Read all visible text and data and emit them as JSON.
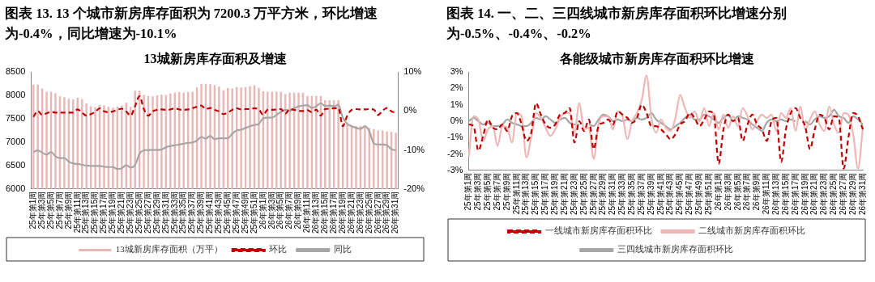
{
  "chart_data": [
    {
      "type": "bar",
      "title": "图表 13. 13 个城市新房库存面积为 7200.3 万平方米，环比增速为-0.4%，同比增速为-10.1%",
      "subtitle": "13城新房库存面积及增速",
      "categories": [
        "25年第1周",
        null,
        "25年第3周",
        null,
        "25年第5周",
        null,
        "25年第7周",
        null,
        "25年第9周",
        null,
        "25年第11周",
        null,
        "25年第13周",
        null,
        "25年第15周",
        null,
        "25年第17周",
        null,
        "25年第19周",
        null,
        "25年第21周",
        null,
        "25年第23周",
        null,
        "25年第25周",
        null,
        "25年第27周",
        null,
        "25年第29周",
        null,
        "25年第31周",
        null,
        "25年第33周",
        null,
        "25年第35周",
        null,
        "25年第37周",
        null,
        "25年第39周",
        null,
        "25年第41周",
        null,
        "25年第43周",
        null,
        "25年第45周",
        null,
        "25年第47周",
        null,
        "25年第49周",
        null,
        "25年第51周",
        null,
        "26年第1周",
        null,
        "26年第3周",
        null,
        "26年第5周",
        null,
        "26年第7周",
        null,
        "26年第9周",
        null,
        "26年第11周",
        null,
        "26年第13周",
        null,
        "26年第15周",
        null,
        "26年第17周",
        null,
        "26年第19周",
        null,
        "26年第21周",
        null,
        "26年第23周",
        null,
        "26年第25周",
        null,
        "26年第27周",
        null,
        "26年第29周",
        null,
        "26年第31周"
      ],
      "series": [
        {
          "name": "13城新房库存面积（万平）",
          "type": "bar",
          "axis": "y",
          "color": "#e8b7b7",
          "values": [
            8230,
            8230,
            8150,
            8080,
            8080,
            8050,
            7980,
            7960,
            7930,
            7920,
            7950,
            7920,
            7830,
            7770,
            7750,
            7800,
            7790,
            7760,
            7740,
            7760,
            7780,
            7840,
            7760,
            8100,
            8100,
            8010,
            7990,
            7980,
            8000,
            8020,
            8010,
            8040,
            8060,
            8070,
            8060,
            8070,
            8080,
            8170,
            8250,
            8250,
            8240,
            8220,
            8190,
            8110,
            8160,
            8150,
            8180,
            8170,
            8180,
            8200,
            8220,
            8160,
            8090,
            8080,
            8080,
            8080,
            8080,
            8030,
            8060,
            8060,
            8060,
            8060,
            7990,
            7990,
            7990,
            7990,
            7900,
            7900,
            7900,
            7900,
            7400,
            7380,
            7350,
            7350,
            7350,
            7350,
            7300,
            7280,
            7250,
            7250,
            7230,
            7220,
            7200
          ]
        },
        {
          "name": "环比",
          "type": "line",
          "axis": "y2",
          "color": "#c00000",
          "line_style": "dashed",
          "values": [
            -1.5,
            0,
            -1.0,
            -0.6,
            -0.2,
            -0.4,
            -0.4,
            -0.4,
            -0.4,
            -0.4,
            0.4,
            -0.4,
            -1.2,
            -0.8,
            -0.2,
            0.7,
            -0.1,
            -0.3,
            -0.1,
            0.3,
            0.6,
            -0.1,
            -1.2,
            1.2,
            3.8,
            0.5,
            -1.2,
            -0.1,
            0.3,
            0.4,
            0.3,
            0.4,
            0.7,
            0.4,
            0.3,
            0.4,
            0.7,
            1.1,
            1.4,
            0.5,
            0.8,
            0.3,
            -0.1,
            -0.8,
            -0.4,
            0.3,
            0.7,
            0.4,
            0.5,
            0.5,
            0.7,
            0.4,
            -1.0,
            0.3,
            0.3,
            0.4,
            0.5,
            -0.7,
            0.5,
            0.3,
            0.0,
            0.0,
            0.2,
            -0.3,
            0.3,
            -1.2,
            0.5,
            0.6,
            0.7,
            0.8,
            -3.9,
            -1.2,
            0.3,
            0.5,
            0.4,
            0.4,
            0.5,
            0.4,
            -1.0,
            0.1,
            0.8,
            -0.1,
            -0.4
          ]
        },
        {
          "name": "同比",
          "type": "line",
          "axis": "y2",
          "color": "#a6a6a6",
          "line_style": "solid",
          "values": [
            -10.5,
            -10.1,
            -10.7,
            -11.2,
            -10.5,
            -11.6,
            -12.1,
            -12.1,
            -13.0,
            -13.5,
            -13.6,
            -13.8,
            -14.0,
            -14.1,
            -14.1,
            -14.1,
            -14.3,
            -14.4,
            -14.4,
            -14.9,
            -14.7,
            -13.9,
            -14.5,
            -13.9,
            -11.0,
            -10.1,
            -10.0,
            -10.0,
            -10.0,
            -9.9,
            -9.3,
            -9.0,
            -8.8,
            -8.6,
            -8.4,
            -8.2,
            -8.1,
            -7.6,
            -6.7,
            -7.1,
            -6.4,
            -7.2,
            -7.0,
            -7.0,
            -7.0,
            -5.8,
            -5.0,
            -4.8,
            -4.3,
            -3.9,
            -3.6,
            -3.3,
            -1.9,
            -1.7,
            -1.7,
            -1.0,
            -0.2,
            0.3,
            0.1,
            0.7,
            1.2,
            1.4,
            1.5,
            0.8,
            1.2,
            2.0,
            1.3,
            1.4,
            1.2,
            1.6,
            -1.7,
            -3.3,
            -3.9,
            -4.3,
            -4.6,
            -3.9,
            -5.2,
            -8.3,
            -8.6,
            -8.6,
            -8.8,
            -9.8,
            -10.1
          ]
        }
      ],
      "ylim": [
        6000,
        8500
      ],
      "yticks": [
        6000,
        6500,
        7000,
        7500,
        8000,
        8500
      ],
      "y2lim": [
        -20,
        10
      ],
      "y2ticks": [
        {
          "value": -20,
          "label": "-20%"
        },
        {
          "value": -10,
          "label": "-10%"
        },
        {
          "value": 0,
          "label": "0%"
        },
        {
          "value": 10,
          "label": "10%"
        }
      ],
      "grid": false,
      "legend": "bottom",
      "marker": "none"
    },
    {
      "type": "line",
      "title": "图表 14. 一、二、三四线城市新房库存面积环比增速分别为-0.5%、-0.4%、-0.2%",
      "subtitle": "各能级城市新房库存面积环比增速",
      "categories": [
        "25年第1周",
        null,
        "25年第3周",
        null,
        "25年第5周",
        null,
        "25年第7周",
        null,
        "25年第9周",
        null,
        "25年第11周",
        null,
        "25年第13周",
        null,
        "25年第15周",
        null,
        "25年第17周",
        null,
        "25年第19周",
        null,
        "25年第21周",
        null,
        "25年第23周",
        null,
        "25年第25周",
        null,
        "25年第27周",
        null,
        "25年第29周",
        null,
        "25年第31周",
        null,
        "25年第33周",
        null,
        "25年第35周",
        null,
        "25年第37周",
        null,
        "25年第39周",
        null,
        "25年第41周",
        null,
        "25年第43周",
        null,
        "25年第45周",
        null,
        "25年第47周",
        null,
        "25年第49周",
        null,
        "25年第51周",
        null,
        "26年第1周",
        null,
        "26年第3周",
        null,
        "26年第5周",
        null,
        "26年第7周",
        null,
        "26年第9周",
        null,
        "26年第11周",
        null,
        "26年第13周",
        null,
        "26年第15周",
        null,
        "26年第17周",
        null,
        "26年第19周",
        null,
        "26年第21周",
        null,
        "26年第23周",
        null,
        "26年第25周",
        null,
        "26年第27周",
        null,
        "26年第29周",
        null,
        "26年第31周"
      ],
      "series": [
        {
          "name": "一线城市新房库存面积环比",
          "type": "line",
          "axis": "y",
          "color": "#c00000",
          "line_style": "dashed",
          "values": [
            -0.2,
            -0.3,
            -1.8,
            -0.9,
            0.1,
            -0.4,
            -0.5,
            -0.2,
            -0.6,
            0.3,
            0.5,
            -0.2,
            -1.2,
            -0.7,
            1.1,
            0.4,
            -0.2,
            -0.4,
            -0.2,
            0.4,
            0.5,
            0.8,
            -1.3,
            0.0,
            -0.6,
            0.1,
            -1.7,
            -0.3,
            -0.1,
            0.1,
            -0.2,
            0.6,
            0.4,
            0.2,
            -0.1,
            0.2,
            1.0,
            0.5,
            -0.3,
            -0.3,
            -0.5,
            -0.8,
            -1.1,
            -0.8,
            -0.2,
            0.0,
            0.5,
            0.2,
            -0.3,
            0.1,
            0.6,
            0.4,
            -2.6,
            -0.5,
            0.4,
            0.0,
            0.2,
            -1.2,
            -0.2,
            0.4,
            -0.2,
            -0.5,
            -1.2,
            0.0,
            0.2,
            -2.5,
            -0.5,
            0.5,
            0.8,
            0.2,
            -0.3,
            -1.7,
            -0.5,
            0.4,
            0.2,
            -0.5,
            0.3,
            0.2,
            -2.9,
            -1.0,
            0.5,
            0.3,
            -0.5
          ]
        },
        {
          "name": "二线城市新房库存面积环比",
          "type": "line",
          "axis": "y",
          "color": "#efb6b6",
          "line_style": "solid",
          "values": [
            -2.2,
            0.3,
            0.1,
            -1.2,
            -0.5,
            -0.3,
            -1.5,
            -0.3,
            -0.4,
            -1.3,
            0.5,
            0.3,
            -2.2,
            -1.0,
            0.5,
            0.2,
            -0.4,
            -0.9,
            -0.5,
            0.2,
            0.5,
            0.5,
            -0.7,
            1.1,
            -0.5,
            -0.4,
            -2.3,
            -0.2,
            0.3,
            0.3,
            -0.5,
            0.6,
            0.3,
            -1.1,
            0.0,
            0.5,
            1.3,
            2.8,
            0.2,
            -0.7,
            0.1,
            -0.4,
            -0.6,
            0.2,
            1.6,
            0.8,
            0.2,
            0.6,
            0.0,
            0.8,
            -0.3,
            0.5,
            -0.5,
            0.4,
            -0.4,
            0.3,
            -0.3,
            0.8,
            0.3,
            -0.5,
            0.0,
            0.4,
            0.2,
            0.4,
            -0.6,
            0.5,
            0.2,
            0.8,
            -0.6,
            0.9,
            -0.5,
            0.1,
            0.6,
            -0.2,
            -0.6,
            0.9,
            -0.2,
            -0.7,
            0.5,
            0.4,
            -0.8,
            -2.9,
            -0.4
          ]
        },
        {
          "name": "三四线城市新房库存面积环比",
          "type": "line",
          "axis": "y",
          "color": "#a6a6a6",
          "line_style": "solid",
          "values": [
            0.0,
            0.2,
            0.0,
            -0.2,
            -0.1,
            -0.3,
            -0.3,
            -0.2,
            0.1,
            -0.1,
            -0.2,
            -0.3,
            -0.3,
            -0.1,
            0.2,
            0.1,
            0.3,
            0.1,
            -0.1,
            0.1,
            0.2,
            -0.1,
            -0.2,
            -0.2,
            null,
            -0.2,
            -0.3,
            0.1,
            0.4,
            0.3,
            0.0,
            0.1,
            0.0,
            0.1,
            0.0,
            0.2,
            0.1,
            0.2,
            0.5,
            0.1,
            -0.1,
            -0.3,
            -0.5,
            -0.3,
            -0.1,
            0.2,
            0.4,
            0.1,
            0.1,
            0.4,
            0.3,
            0.1,
            -0.1,
            0.2,
            0.4,
            0.0,
            0.3,
            0.2,
            0.1,
            -0.2,
            -0.4,
            -0.6,
            -0.1,
            0.1,
            0.0,
            0.1,
            0.0,
            0.1,
            0.0,
            null,
            0.0,
            -0.2,
            0.1,
            0.3,
            0.2,
            0.3,
            0.7,
            0.3,
            0.2,
            -0.1,
            0.3,
            0.1,
            -0.2
          ]
        }
      ],
      "ylim": [
        -3,
        3
      ],
      "yticks": [
        {
          "value": -3,
          "label": "-3%"
        },
        {
          "value": -2,
          "label": "-2%"
        },
        {
          "value": -1,
          "label": "-1%"
        },
        {
          "value": 0,
          "label": "0%"
        },
        {
          "value": 1,
          "label": "1%"
        },
        {
          "value": 2,
          "label": "2%"
        },
        {
          "value": 3,
          "label": "3%"
        }
      ],
      "grid": false,
      "legend": "bottom",
      "marker": "none"
    }
  ]
}
